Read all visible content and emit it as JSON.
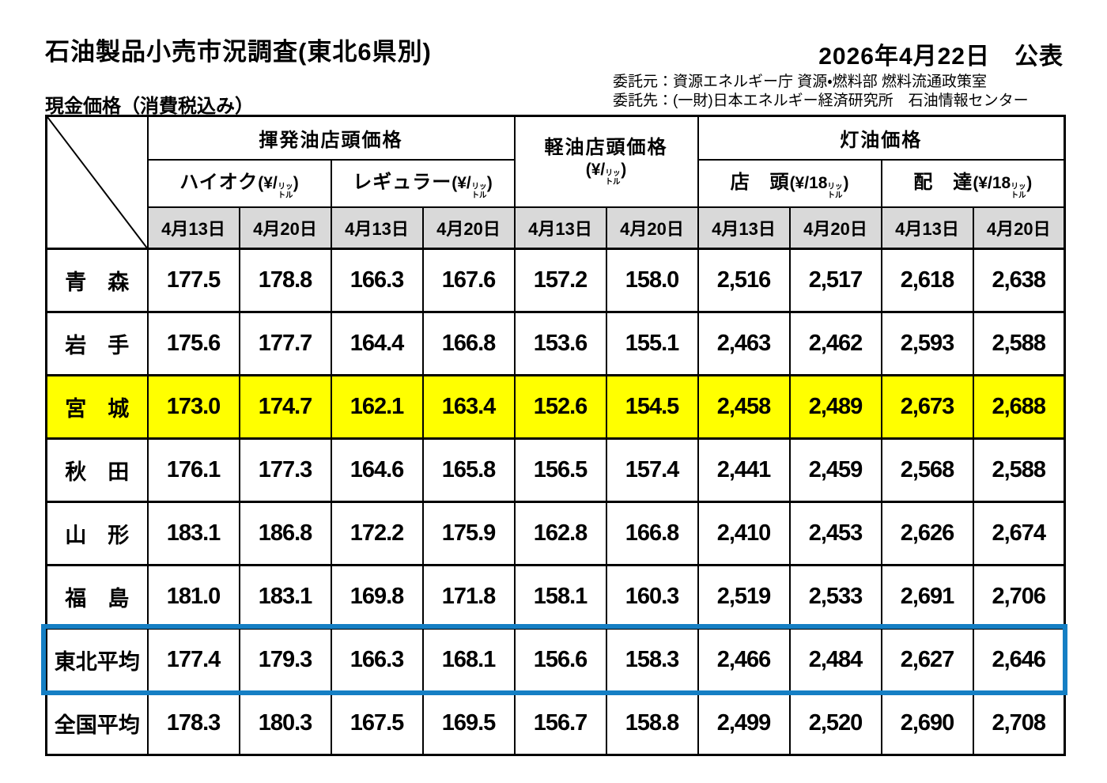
{
  "page": {
    "title": "石油製品小売市況調査(東北6県別)",
    "publish_date": "2026年4月22日　公表",
    "credit_line1": "委託元：資源エネルギー庁 資源・燃料部 燃料流通政策室",
    "credit_line2": "委託先：(一財)日本エネルギー経済研究所　石油情報センター",
    "price_note": "現金価格（消費税込み）"
  },
  "table": {
    "groups": {
      "gasoline_title": "揮発油店頭価格",
      "diesel_title": "軽油店頭価格",
      "kerosene_title": "灯油価格"
    },
    "subheaders": {
      "premium": "ハイオク",
      "regular": "レギュラー",
      "storefront": "店　頭",
      "delivery": "配　達"
    },
    "units": {
      "yen_per_liter_open": "(¥/",
      "yen_per_18l_open": "(¥/18",
      "liter_top": "リッ",
      "liter_bottom": "トル",
      "close_paren": ")"
    },
    "dates": [
      "4月13日",
      "4月20日"
    ],
    "rows": [
      {
        "label": "青　森",
        "highlight": "none",
        "values": [
          "177.5",
          "178.8",
          "166.3",
          "167.6",
          "157.2",
          "158.0",
          "2,516",
          "2,517",
          "2,618",
          "2,638"
        ]
      },
      {
        "label": "岩　手",
        "highlight": "none",
        "values": [
          "175.6",
          "177.7",
          "164.4",
          "166.8",
          "153.6",
          "155.1",
          "2,463",
          "2,462",
          "2,593",
          "2,588"
        ]
      },
      {
        "label": "宮　城",
        "highlight": "yellow",
        "values": [
          "173.0",
          "174.7",
          "162.1",
          "163.4",
          "152.6",
          "154.5",
          "2,458",
          "2,489",
          "2,673",
          "2,688"
        ]
      },
      {
        "label": "秋　田",
        "highlight": "none",
        "values": [
          "176.1",
          "177.3",
          "164.6",
          "165.8",
          "156.5",
          "157.4",
          "2,441",
          "2,459",
          "2,568",
          "2,588"
        ]
      },
      {
        "label": "山　形",
        "highlight": "none",
        "values": [
          "183.1",
          "186.8",
          "172.2",
          "175.9",
          "162.8",
          "166.8",
          "2,410",
          "2,453",
          "2,626",
          "2,674"
        ]
      },
      {
        "label": "福　島",
        "highlight": "none",
        "values": [
          "181.0",
          "183.1",
          "169.8",
          "171.8",
          "158.1",
          "160.3",
          "2,519",
          "2,533",
          "2,691",
          "2,706"
        ]
      },
      {
        "label": "東北平均",
        "highlight": "blue-outline",
        "values": [
          "177.4",
          "179.3",
          "166.3",
          "168.1",
          "156.6",
          "158.3",
          "2,466",
          "2,484",
          "2,627",
          "2,646"
        ]
      },
      {
        "label": "全国平均",
        "highlight": "none",
        "values": [
          "178.3",
          "180.3",
          "167.5",
          "169.5",
          "156.7",
          "158.8",
          "2,499",
          "2,520",
          "2,690",
          "2,708"
        ]
      }
    ],
    "colors": {
      "highlight_yellow": "#ffff00",
      "highlight_blue_border": "#157fc4",
      "date_header_gray": "#d9d9d9"
    }
  }
}
